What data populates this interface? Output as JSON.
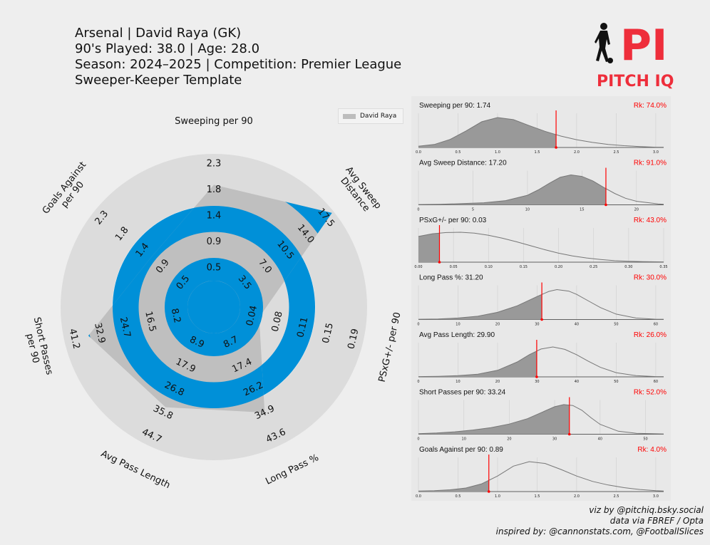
{
  "header": {
    "line1": "Arsenal | David Raya (GK)",
    "line2": "90's Played: 38.0 | Age: 28.0",
    "line3": "Season: 2024–2025 | Competition: Premier League",
    "line4": "Sweeper-Keeper Template"
  },
  "logo": {
    "mark": "PI",
    "name": "PITCH IQ",
    "icon": "footballer-silhouette-icon"
  },
  "legend": {
    "label": "David Raya"
  },
  "footer": {
    "line1": "viz by @pitchiq.bsky.social",
    "line2": "data via FBREF / Opta",
    "line3": "inspired by: @cannonstats.com, @FootballSlices"
  },
  "colors": {
    "accent": "#0090d8",
    "player_fill": "#bdbdbd",
    "ring_light": "#dcdcdc",
    "marker": "#ff0000",
    "dist_fill": "#999999"
  },
  "chart_data": [
    {
      "type": "radar",
      "series": [
        {
          "name": "David Raya"
        }
      ],
      "axes": [
        {
          "label": "Sweeping per 90",
          "display": "top",
          "ticks": [
            "0.5",
            "0.9",
            "1.4",
            "1.8",
            "2.3"
          ],
          "value": 1.74,
          "max": 2.3
        },
        {
          "label": "Avg Sweep\nDistance",
          "ticks": [
            "3.5",
            "7.0",
            "10.5",
            "14.0",
            "17.5"
          ],
          "value": 17.2,
          "max": 17.5
        },
        {
          "label": "PSxG+/- per 90",
          "ticks": [
            "0.04",
            "0.08",
            "0.11",
            "0.15",
            "0.19"
          ],
          "value": 0.03,
          "max": 0.19
        },
        {
          "label": "Long Pass %",
          "ticks": [
            "8.7",
            "17.4",
            "26.2",
            "34.9",
            "43.6"
          ],
          "value": 31.2,
          "max": 43.6
        },
        {
          "label": "Avg Pass Length",
          "ticks": [
            "8.9",
            "17.9",
            "26.8",
            "35.8",
            "44.7"
          ],
          "value": 29.9,
          "max": 44.7
        },
        {
          "label": "Short Passes\nper 90",
          "ticks": [
            "8.2",
            "16.5",
            "24.7",
            "32.9",
            "41.2"
          ],
          "value": 33.24,
          "max": 41.2
        },
        {
          "label": "Goals Against\nper 90",
          "ticks": [
            "0.5",
            "0.9",
            "1.4",
            "1.8",
            "2.3"
          ],
          "value": 0.89,
          "max": 2.3,
          "inverted": true
        }
      ]
    },
    {
      "type": "area",
      "title": "Sweeping per 90: 1.74",
      "rank": "Rk: 74.0%",
      "value": 1.74,
      "xlim": [
        0,
        3.1
      ],
      "ticks": [
        "0.0",
        "0.5",
        "1.0",
        "1.5",
        "2.0",
        "2.5",
        "3.0"
      ],
      "curve": {
        "x": [
          0,
          0.2,
          0.4,
          0.6,
          0.8,
          1.0,
          1.2,
          1.4,
          1.6,
          1.8,
          2.0,
          2.2,
          2.4,
          2.6,
          2.8,
          3.0,
          3.1
        ],
        "y": [
          0.04,
          0.1,
          0.27,
          0.55,
          0.86,
          1.0,
          0.93,
          0.73,
          0.54,
          0.38,
          0.26,
          0.17,
          0.1,
          0.06,
          0.03,
          0.01,
          0.01
        ]
      }
    },
    {
      "type": "area",
      "title": "Avg Sweep Distance: 17.20",
      "rank": "Rk: 91.0%",
      "value": 17.2,
      "xlim": [
        0,
        22.5
      ],
      "ticks": [
        "0",
        "5",
        "10",
        "15",
        "20"
      ],
      "curve": {
        "x": [
          0,
          2,
          4,
          6,
          8,
          10,
          11,
          12,
          13,
          14,
          15,
          16,
          17,
          18,
          19,
          20,
          22,
          22.5
        ],
        "y": [
          0.01,
          0.02,
          0.04,
          0.07,
          0.14,
          0.32,
          0.5,
          0.72,
          0.92,
          1.0,
          0.95,
          0.8,
          0.58,
          0.38,
          0.22,
          0.12,
          0.03,
          0.02
        ]
      }
    },
    {
      "type": "area",
      "title": "PSxG+/- per 90: 0.03",
      "rank": "Rk: 43.0%",
      "value": 0.03,
      "xlim": [
        0,
        0.35
      ],
      "ticks": [
        "0.00",
        "0.05",
        "0.10",
        "0.15",
        "0.20",
        "0.25",
        "0.30",
        "0.35"
      ],
      "curve": {
        "x": [
          0,
          0.02,
          0.04,
          0.06,
          0.08,
          0.1,
          0.12,
          0.14,
          0.16,
          0.18,
          0.2,
          0.22,
          0.24,
          0.26,
          0.28,
          0.3,
          0.32,
          0.35
        ],
        "y": [
          0.86,
          0.95,
          0.99,
          1.0,
          0.97,
          0.9,
          0.8,
          0.68,
          0.55,
          0.42,
          0.3,
          0.21,
          0.14,
          0.09,
          0.05,
          0.03,
          0.02,
          0.01
        ]
      }
    },
    {
      "type": "area",
      "title": "Long Pass %: 31.20",
      "rank": "Rk: 30.0%",
      "value": 31.2,
      "xlim": [
        0,
        62
      ],
      "ticks": [
        "0",
        "10",
        "20",
        "30",
        "40",
        "50",
        "60"
      ],
      "curve": {
        "x": [
          0,
          5,
          10,
          15,
          20,
          25,
          30,
          33,
          35,
          38,
          40,
          43,
          46,
          50,
          55,
          60,
          62
        ],
        "y": [
          0.01,
          0.02,
          0.05,
          0.11,
          0.24,
          0.46,
          0.77,
          0.94,
          1.0,
          0.95,
          0.84,
          0.62,
          0.4,
          0.18,
          0.05,
          0.01,
          0.01
        ]
      }
    },
    {
      "type": "area",
      "title": "Avg Pass Length: 29.90",
      "rank": "Rk: 26.0%",
      "value": 29.9,
      "xlim": [
        0,
        62
      ],
      "ticks": [
        "0",
        "10",
        "20",
        "30",
        "40",
        "50",
        "60"
      ],
      "curve": {
        "x": [
          0,
          5,
          10,
          15,
          20,
          25,
          28,
          31,
          34,
          37,
          40,
          43,
          46,
          50,
          55,
          60,
          62
        ],
        "y": [
          0.01,
          0.02,
          0.04,
          0.09,
          0.22,
          0.5,
          0.74,
          0.93,
          1.0,
          0.92,
          0.74,
          0.52,
          0.32,
          0.14,
          0.04,
          0.01,
          0.01
        ]
      }
    },
    {
      "type": "area",
      "title": "Short Passes per 90: 33.24",
      "rank": "Rk: 52.0%",
      "value": 33.24,
      "xlim": [
        0,
        54
      ],
      "ticks": [
        "0",
        "10",
        "20",
        "30",
        "40",
        "50"
      ],
      "curve": {
        "x": [
          0,
          4,
          8,
          12,
          16,
          20,
          24,
          27,
          30,
          32,
          34,
          36,
          38,
          40,
          44,
          48,
          54
        ],
        "y": [
          0.02,
          0.04,
          0.08,
          0.14,
          0.22,
          0.34,
          0.52,
          0.72,
          0.92,
          0.99,
          0.96,
          0.8,
          0.55,
          0.33,
          0.1,
          0.03,
          0.01
        ]
      }
    },
    {
      "type": "area",
      "title": "Goals Against per 90: 0.89",
      "rank": "Rk: 4.0%",
      "value": 0.89,
      "xlim": [
        0,
        3.1
      ],
      "ticks": [
        "0.0",
        "0.5",
        "1.0",
        "1.5",
        "2.0",
        "2.5",
        "3.0"
      ],
      "curve": {
        "x": [
          0,
          0.2,
          0.4,
          0.6,
          0.8,
          1.0,
          1.2,
          1.4,
          1.6,
          1.8,
          2.0,
          2.2,
          2.4,
          2.6,
          2.8,
          3.0,
          3.1
        ],
        "y": [
          0.02,
          0.03,
          0.06,
          0.12,
          0.26,
          0.52,
          0.85,
          1.0,
          0.94,
          0.74,
          0.52,
          0.34,
          0.22,
          0.13,
          0.07,
          0.03,
          0.02
        ]
      }
    }
  ]
}
